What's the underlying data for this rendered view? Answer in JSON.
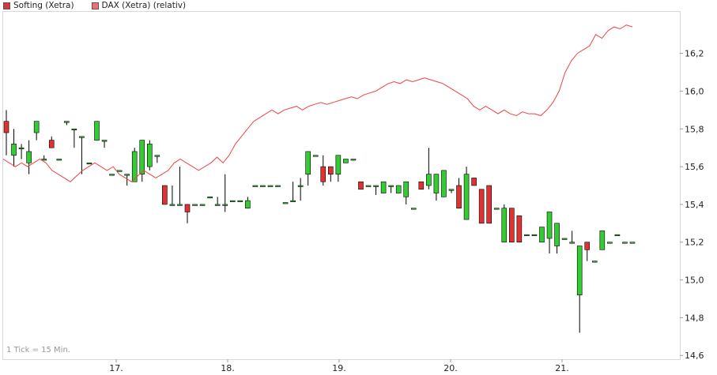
{
  "legend": {
    "items": [
      {
        "label": "Softing (Xetra)",
        "color": "#d9363e"
      },
      {
        "label": "DAX (Xetra) (relativ)",
        "color": "#f07070"
      }
    ]
  },
  "note": "1 Tick = 15 Min.",
  "chart_data": {
    "type": "candlestick",
    "x_ticks": [
      "17.",
      "18.",
      "19.",
      "20.",
      "21."
    ],
    "y_ticks": [
      "14,6",
      "14,8",
      "15,0",
      "15,2",
      "15,4",
      "15,6",
      "15,8",
      "16,0",
      "16,2"
    ],
    "ylim": [
      14.58,
      16.42
    ],
    "grid": false,
    "colors": {
      "up": "#33cc33",
      "down": "#dd3333",
      "line": "#ee4444",
      "axis": "#cccccc"
    },
    "series": [
      {
        "name": "Softing (Xetra)",
        "candles": [
          [
            15.84,
            15.9,
            15.66,
            15.78
          ],
          [
            15.66,
            15.8,
            15.6,
            15.72
          ],
          [
            15.7,
            15.72,
            15.64,
            15.7
          ],
          [
            15.62,
            15.74,
            15.56,
            15.68
          ],
          [
            15.78,
            15.84,
            15.74,
            15.84
          ],
          [
            15.64,
            15.66,
            15.64,
            15.64
          ],
          [
            15.74,
            15.76,
            15.7,
            15.7
          ],
          [
            15.64,
            15.64,
            15.64,
            15.64
          ],
          [
            15.84,
            15.84,
            15.82,
            15.84
          ],
          [
            15.8,
            15.8,
            15.7,
            15.8
          ],
          [
            15.76,
            15.76,
            15.56,
            15.76
          ],
          [
            15.62,
            15.62,
            15.62,
            15.62
          ],
          [
            15.74,
            15.84,
            15.74,
            15.84
          ],
          [
            15.74,
            15.74,
            15.7,
            15.74
          ],
          [
            15.56,
            15.56,
            15.56,
            15.56
          ],
          [
            15.58,
            15.58,
            15.58,
            15.58
          ],
          [
            15.56,
            15.56,
            15.5,
            15.56
          ],
          [
            15.52,
            15.7,
            15.52,
            15.68
          ],
          [
            15.56,
            15.74,
            15.52,
            15.74
          ],
          [
            15.6,
            15.74,
            15.58,
            15.72
          ],
          [
            15.66,
            15.66,
            15.62,
            15.66
          ],
          [
            15.5,
            15.5,
            15.4,
            15.4
          ],
          [
            15.4,
            15.5,
            15.4,
            15.4
          ],
          [
            15.4,
            15.6,
            15.4,
            15.4
          ],
          [
            15.4,
            15.4,
            15.3,
            15.36
          ],
          [
            15.4,
            15.4,
            15.4,
            15.4
          ],
          [
            15.4,
            15.4,
            15.4,
            15.4
          ],
          [
            15.44,
            15.44,
            15.44,
            15.44
          ],
          [
            15.4,
            15.44,
            15.4,
            15.4
          ],
          [
            15.4,
            15.56,
            15.36,
            15.4
          ],
          [
            15.42,
            15.42,
            15.42,
            15.42
          ],
          [
            15.42,
            15.42,
            15.42,
            15.42
          ],
          [
            15.38,
            15.44,
            15.38,
            15.42
          ],
          [
            15.5,
            15.5,
            15.5,
            15.5
          ],
          [
            15.5,
            15.5,
            15.5,
            15.5
          ],
          [
            15.5,
            15.5,
            15.5,
            15.5
          ],
          [
            15.5,
            15.5,
            15.5,
            15.5
          ],
          [
            15.41,
            15.41,
            15.41,
            15.41
          ],
          [
            15.42,
            15.52,
            15.42,
            15.42
          ],
          [
            15.5,
            15.54,
            15.42,
            15.5
          ],
          [
            15.56,
            15.68,
            15.5,
            15.68
          ],
          [
            15.66,
            15.66,
            15.66,
            15.66
          ],
          [
            15.6,
            15.66,
            15.5,
            15.52
          ],
          [
            15.6,
            15.6,
            15.52,
            15.56
          ],
          [
            15.56,
            15.66,
            15.52,
            15.66
          ],
          [
            15.62,
            15.64,
            15.62,
            15.64
          ],
          [
            15.64,
            15.64,
            15.64,
            15.64
          ],
          [
            15.52,
            15.52,
            15.48,
            15.48
          ],
          [
            15.5,
            15.5,
            15.5,
            15.5
          ],
          [
            15.5,
            15.5,
            15.45,
            15.5
          ],
          [
            15.46,
            15.52,
            15.46,
            15.52
          ],
          [
            15.5,
            15.5,
            15.46,
            15.5
          ],
          [
            15.46,
            15.5,
            15.46,
            15.5
          ],
          [
            15.44,
            15.52,
            15.4,
            15.52
          ],
          [
            15.38,
            15.38,
            15.38,
            15.38
          ],
          [
            15.52,
            15.52,
            15.48,
            15.48
          ],
          [
            15.5,
            15.7,
            15.48,
            15.56
          ],
          [
            15.46,
            15.56,
            15.42,
            15.56
          ],
          [
            15.44,
            15.58,
            15.44,
            15.58
          ],
          [
            15.48,
            15.48,
            15.46,
            15.48
          ],
          [
            15.5,
            15.54,
            15.38,
            15.38
          ],
          [
            15.32,
            15.6,
            15.32,
            15.56
          ],
          [
            15.54,
            15.54,
            15.5,
            15.5
          ],
          [
            15.48,
            15.48,
            15.3,
            15.3
          ],
          [
            15.5,
            15.5,
            15.3,
            15.3
          ],
          [
            15.38,
            15.38,
            15.38,
            15.38
          ],
          [
            15.2,
            15.4,
            15.2,
            15.38
          ],
          [
            15.38,
            15.38,
            15.2,
            15.2
          ],
          [
            15.34,
            15.34,
            15.2,
            15.2
          ],
          [
            15.24,
            15.24,
            15.24,
            15.24
          ],
          [
            15.24,
            15.24,
            15.24,
            15.24
          ],
          [
            15.2,
            15.28,
            15.2,
            15.28
          ],
          [
            15.22,
            15.36,
            15.14,
            15.36
          ],
          [
            15.18,
            15.3,
            15.14,
            15.3
          ],
          [
            15.22,
            15.22,
            15.22,
            15.22
          ],
          [
            15.2,
            15.26,
            15.2,
            15.2
          ],
          [
            14.92,
            15.18,
            14.72,
            15.18
          ],
          [
            15.2,
            15.2,
            15.1,
            15.16
          ],
          [
            15.1,
            15.1,
            15.1,
            15.1
          ],
          [
            15.16,
            15.26,
            15.16,
            15.26
          ],
          [
            15.2,
            15.2,
            15.2,
            15.2
          ],
          [
            15.24,
            15.24,
            15.24,
            15.24
          ],
          [
            15.2,
            15.2,
            15.2,
            15.2
          ],
          [
            15.2,
            15.2,
            15.2,
            15.2
          ]
        ]
      },
      {
        "name": "DAX (Xetra) (relativ)",
        "values": [
          15.64,
          15.62,
          15.6,
          15.62,
          15.6,
          15.62,
          15.64,
          15.62,
          15.58,
          15.56,
          15.54,
          15.52,
          15.55,
          15.58,
          15.6,
          15.62,
          15.6,
          15.58,
          15.6,
          15.56,
          15.54,
          15.52,
          15.55,
          15.58,
          15.56,
          15.54,
          15.56,
          15.58,
          15.62,
          15.64,
          15.62,
          15.6,
          15.58,
          15.6,
          15.62,
          15.65,
          15.62,
          15.66,
          15.72,
          15.76,
          15.8,
          15.84,
          15.86,
          15.88,
          15.9,
          15.88,
          15.9,
          15.91,
          15.92,
          15.9,
          15.92,
          15.93,
          15.94,
          15.93,
          15.94,
          15.95,
          15.96,
          15.97,
          15.96,
          15.98,
          15.99,
          16.0,
          16.02,
          16.04,
          16.05,
          16.04,
          16.06,
          16.05,
          16.06,
          16.07,
          16.06,
          16.05,
          16.04,
          16.02,
          16.0,
          15.98,
          15.96,
          15.92,
          15.9,
          15.92,
          15.9,
          15.88,
          15.9,
          15.88,
          15.87,
          15.89,
          15.88,
          15.88,
          15.87,
          15.9,
          15.94,
          16.0,
          16.1,
          16.16,
          16.2,
          16.22,
          16.24,
          16.3,
          16.28,
          16.32,
          16.34,
          16.33,
          16.35,
          16.34
        ]
      }
    ]
  }
}
